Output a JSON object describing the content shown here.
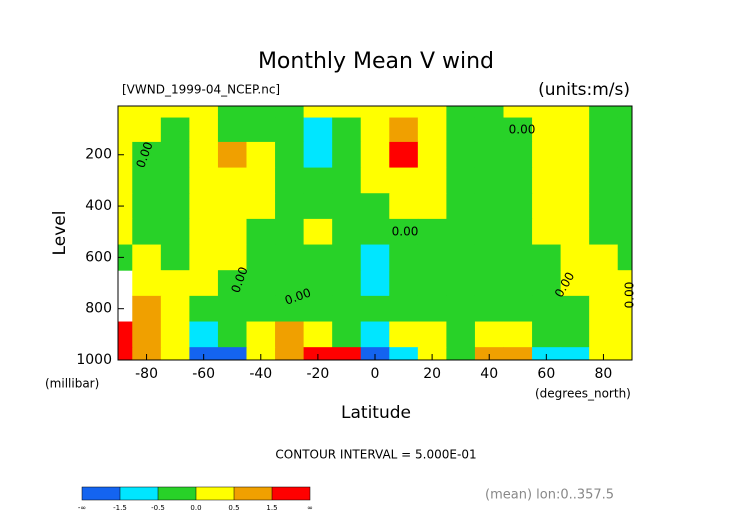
{
  "chart_data": {
    "type": "contour",
    "title": "Monthly Mean V wind",
    "dataset": "[VWND_1999-04_NCEP.nc]",
    "units": "(units:m/s)",
    "y_label": "Level",
    "y_unit": "(millibar)",
    "x_label": "Latitude",
    "x_unit": "(degrees_north)",
    "contour_interval": "CONTOUR INTERVAL = 5.000E-01",
    "footnote": "(mean) lon:0..357.5",
    "x": [
      -90,
      -80,
      -70,
      -60,
      -50,
      -40,
      -30,
      -20,
      -10,
      0,
      10,
      20,
      30,
      40,
      50,
      60,
      70,
      80,
      90
    ],
    "y": [
      10,
      100,
      200,
      300,
      400,
      500,
      600,
      700,
      800,
      900,
      1000
    ],
    "z": [
      [
        0.2,
        0.2,
        0.2,
        0.1,
        -0.2,
        -0.2,
        -0.2,
        0.2,
        0.2,
        0.2,
        0.2,
        0.2,
        -0.2,
        -0.2,
        0.2,
        0.2,
        0.2,
        -0.1,
        -0.2
      ],
      [
        0.2,
        0.2,
        -0.2,
        0.2,
        -0.2,
        -0.2,
        -0.2,
        -0.7,
        -0.2,
        0.2,
        0.8,
        0.3,
        -0.2,
        -0.2,
        -0.2,
        0.2,
        0.2,
        -0.2,
        -0.2
      ],
      [
        0.2,
        -0.2,
        -0.2,
        0.2,
        0.6,
        0.2,
        -0.2,
        -0.6,
        -0.2,
        0.2,
        1.6,
        0.3,
        -0.2,
        -0.2,
        -0.2,
        0.2,
        0.2,
        -0.2,
        -0.2
      ],
      [
        0.2,
        -0.2,
        -0.2,
        0.2,
        0.2,
        0.2,
        -0.2,
        -0.2,
        -0.2,
        0.2,
        0.2,
        0.2,
        -0.2,
        -0.2,
        -0.2,
        0.2,
        0.2,
        -0.2,
        -0.2
      ],
      [
        0.2,
        -0.2,
        -0.2,
        0.2,
        0.2,
        0.2,
        -0.2,
        -0.2,
        -0.2,
        -0.2,
        0.2,
        0.2,
        -0.2,
        -0.2,
        -0.2,
        0.2,
        0.2,
        -0.2,
        -0.2
      ],
      [
        0.2,
        -0.2,
        -0.2,
        0.2,
        0.2,
        -0.2,
        -0.2,
        0.1,
        -0.2,
        -0.2,
        -0.2,
        -0.2,
        -0.2,
        -0.2,
        -0.2,
        0.2,
        0.2,
        -0.2,
        -0.2
      ],
      [
        -0.2,
        0.2,
        -0.2,
        0.2,
        0.2,
        -0.2,
        -0.2,
        -0.2,
        -0.2,
        -0.6,
        -0.2,
        -0.2,
        -0.2,
        -0.2,
        -0.2,
        -0.2,
        0.2,
        0.2,
        -0.2
      ],
      [
        null,
        0.2,
        0.2,
        0.2,
        -0.2,
        -0.2,
        -0.2,
        -0.2,
        -0.2,
        -0.6,
        -0.2,
        -0.2,
        -0.2,
        -0.2,
        -0.2,
        -0.2,
        0.2,
        0.2,
        0.1
      ],
      [
        null,
        0.7,
        0.2,
        -0.2,
        -0.2,
        -0.2,
        -0.2,
        -0.2,
        -0.2,
        -0.2,
        -0.2,
        -0.2,
        -0.2,
        -0.2,
        -0.2,
        -0.2,
        -0.2,
        0.2,
        0.1
      ],
      [
        1.6,
        0.7,
        0.2,
        -0.6,
        -0.2,
        0.2,
        0.6,
        0.2,
        -0.2,
        -0.6,
        0.2,
        0.2,
        -0.2,
        0.2,
        0.2,
        -0.2,
        -0.2,
        0.2,
        0.1
      ],
      [
        1.8,
        0.7,
        0.2,
        -1.6,
        -1.6,
        0.2,
        0.8,
        1.6,
        1.6,
        -1.6,
        -0.6,
        0.2,
        -0.2,
        0.6,
        0.6,
        -0.6,
        -0.6,
        0.2,
        0.2
      ]
    ],
    "xlim": [
      -90,
      90
    ],
    "xticks": [
      -80,
      -60,
      -40,
      -20,
      0,
      20,
      40,
      60,
      80
    ],
    "ylim": [
      1000,
      10
    ],
    "yticks": [
      200,
      400,
      600,
      800,
      1000
    ],
    "colorbar": {
      "ticks": [
        "-∞",
        -1.5,
        -0.5,
        {
          "value": 0,
          "label": "0.0"
        },
        0.5,
        1.5,
        "∞"
      ],
      "colors": [
        "#1464f0",
        "#00e6ff",
        "#28d228",
        "#ffff00",
        "#f0a000",
        "#ff0000"
      ]
    },
    "contour_labels": [
      "0.00",
      "0.00",
      "0.00",
      "0.00",
      "0.00",
      "0.00",
      "0.00"
    ]
  }
}
